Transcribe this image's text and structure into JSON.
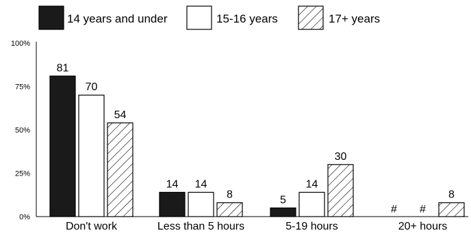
{
  "chart_data": {
    "type": "bar",
    "categories": [
      "Don't work",
      "Less than 5 hours",
      "5-19 hours",
      "20+ hours"
    ],
    "series": [
      {
        "name": "14 years and under",
        "values": [
          81,
          14,
          5,
          null
        ],
        "labels": [
          "81",
          "14",
          "5",
          "#"
        ],
        "fill": "solid-black"
      },
      {
        "name": "15-16 years",
        "values": [
          70,
          14,
          14,
          null
        ],
        "labels": [
          "70",
          "14",
          "14",
          "#"
        ],
        "fill": "white"
      },
      {
        "name": "17+ years",
        "values": [
          54,
          8,
          30,
          8
        ],
        "labels": [
          "54",
          "8",
          "30",
          "8"
        ],
        "fill": "diagonal-hatch"
      }
    ],
    "y_ticks": [
      "0%",
      "25%",
      "50%",
      "75%",
      "100%"
    ],
    "ylim": [
      0,
      100
    ],
    "legend_position": "top",
    "grid": false,
    "colors": {
      "bar_black": "#1a1a1a",
      "bar_white": "#ffffff",
      "stroke": "#000000"
    }
  }
}
